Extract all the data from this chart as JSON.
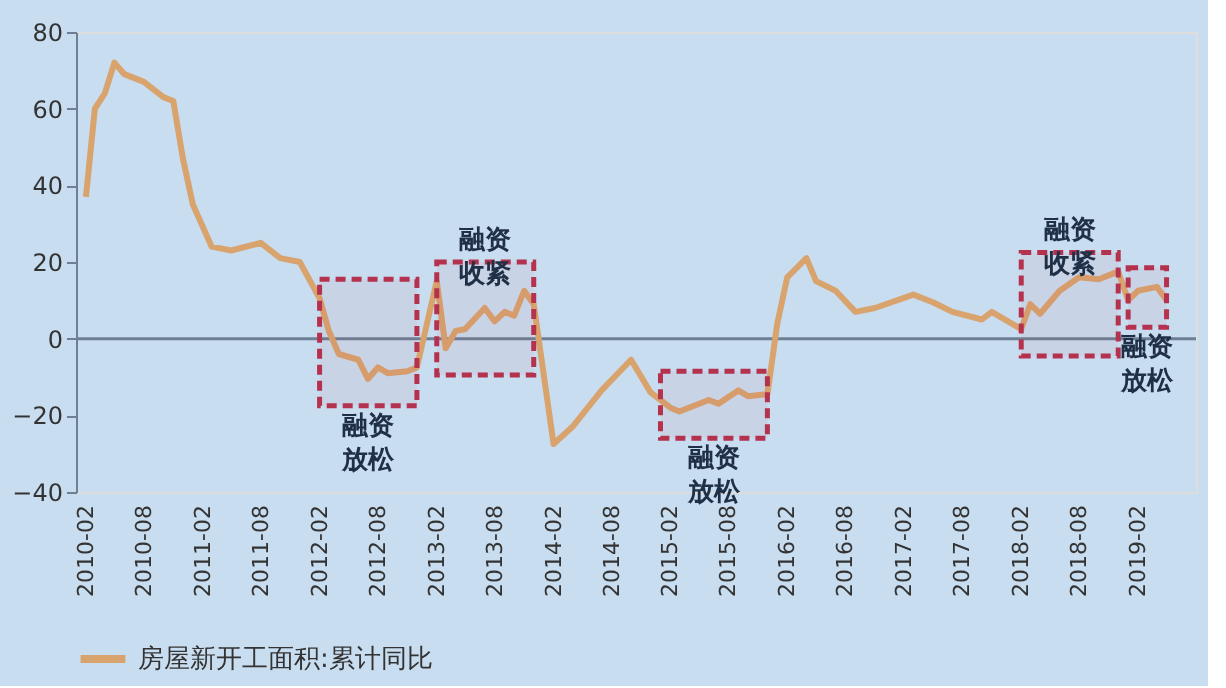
{
  "chart_data": {
    "type": "line",
    "legend": "bottom",
    "grid": false,
    "line_style": "solid",
    "marker": "none",
    "x": [
      "2010-02",
      "2010-03",
      "2010-04",
      "2010-05",
      "2010-06",
      "2010-08",
      "2010-10",
      "2010-11",
      "2010-12",
      "2011-01",
      "2011-03",
      "2011-05",
      "2011-08",
      "2011-10",
      "2011-12",
      "2012-02",
      "2012-03",
      "2012-04",
      "2012-06",
      "2012-07",
      "2012-08",
      "2012-09",
      "2012-11",
      "2012-12",
      "2013-02",
      "2013-03",
      "2013-04",
      "2013-05",
      "2013-07",
      "2013-08",
      "2013-09",
      "2013-10",
      "2013-11",
      "2013-12",
      "2014-02",
      "2014-04",
      "2014-07",
      "2014-10",
      "2014-12",
      "2015-02",
      "2015-03",
      "2015-06",
      "2015-07",
      "2015-09",
      "2015-10",
      "2015-12",
      "2016-01",
      "2016-02",
      "2016-04",
      "2016-05",
      "2016-07",
      "2016-09",
      "2016-11",
      "2017-03",
      "2017-05",
      "2017-07",
      "2017-10",
      "2017-11",
      "2018-02",
      "2018-03",
      "2018-04",
      "2018-06",
      "2018-08",
      "2018-10",
      "2018-12",
      "2019-01",
      "2019-02",
      "2019-04",
      "2019-05"
    ],
    "series": [
      {
        "name": "房屋新开工面积:累计同比",
        "color": "#d9a36e",
        "values": [
          37,
          60,
          64,
          72,
          69,
          67,
          63,
          62,
          47,
          35,
          24,
          23,
          25,
          21,
          20,
          10.5,
          2,
          -4,
          -5.5,
          -10.5,
          -7.5,
          -9,
          -8.5,
          -7.5,
          15,
          -2.5,
          2,
          2.5,
          8,
          4.5,
          7,
          6,
          12.5,
          9,
          -27.5,
          -23,
          -13.5,
          -5.5,
          -14,
          -18,
          -19,
          -16,
          -17,
          -13.5,
          -15,
          -14.5,
          4,
          16,
          21,
          15,
          12.5,
          7,
          8,
          11.5,
          9.5,
          7,
          5,
          7,
          2.5,
          9,
          6.5,
          12.5,
          16,
          15.5,
          17.5,
          10,
          12.5,
          13.5,
          10
        ]
      }
    ],
    "xlim": [
      "2010-01",
      "2019-08"
    ],
    "xticks": [
      "2010-02",
      "2010-08",
      "2011-02",
      "2011-08",
      "2012-02",
      "2012-08",
      "2013-02",
      "2013-08",
      "2014-02",
      "2014-08",
      "2015-02",
      "2015-08",
      "2016-02",
      "2016-08",
      "2017-02",
      "2017-08",
      "2018-02",
      "2018-08",
      "2019-02"
    ],
    "ylim": [
      -40,
      80
    ],
    "yticks": [
      -40,
      -20,
      0,
      20,
      40,
      60,
      80
    ],
    "ref_lines": [
      {
        "axis": "y",
        "value": 0,
        "color": "#6d7f94"
      }
    ],
    "bands": [
      {
        "axis": "x",
        "from": "2012-02",
        "to": "2012-12",
        "color": "#b5324f",
        "label": "融资放松"
      },
      {
        "axis": "x",
        "from": "2013-02",
        "to": "2013-12",
        "color": "#b5324f",
        "label": "融资收紧"
      },
      {
        "axis": "x",
        "from": "2015-01",
        "to": "2015-12",
        "color": "#b5324f",
        "label": "融资放松"
      },
      {
        "axis": "x",
        "from": "2018-02",
        "to": "2018-12",
        "color": "#b5324f",
        "label": "融资收紧"
      },
      {
        "axis": "x",
        "from": "2019-01",
        "to": "2019-05",
        "color": "#b5324f",
        "label": "融资放松"
      }
    ]
  }
}
